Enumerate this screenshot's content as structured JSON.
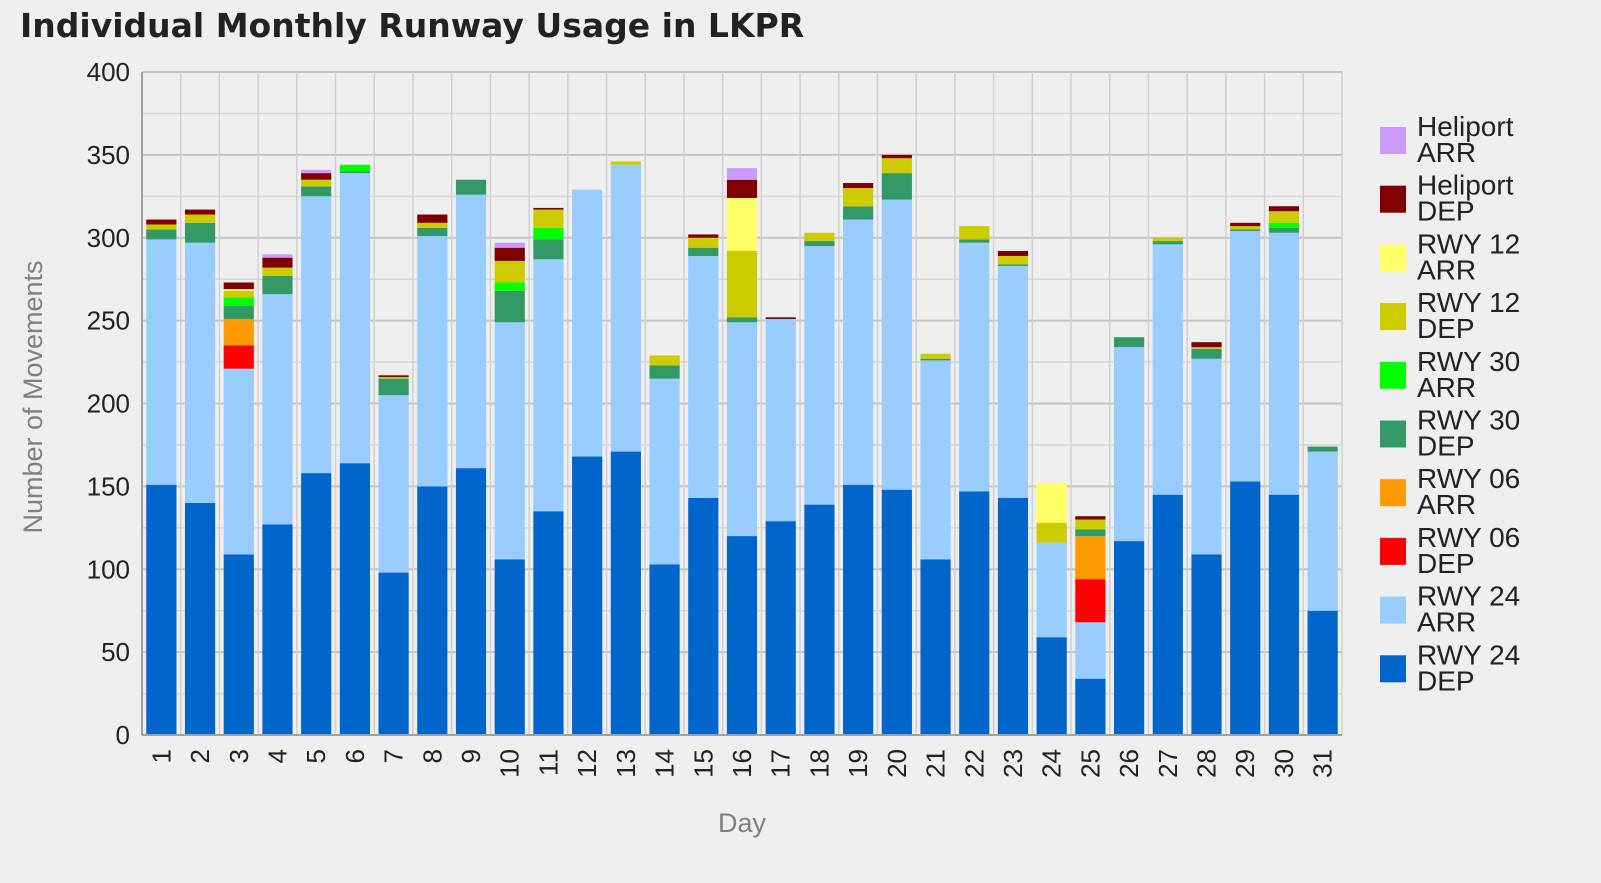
{
  "chart_data": {
    "type": "bar",
    "stacked": true,
    "title": "Individual Monthly Runway Usage in LKPR",
    "xlabel": "Day",
    "ylabel": "Number of Movements",
    "ylim": [
      0,
      400
    ],
    "yticks": [
      0,
      50,
      100,
      150,
      200,
      250,
      300,
      350,
      400
    ],
    "grid": true,
    "legend_position": "right",
    "categories": [
      "1",
      "2",
      "3",
      "4",
      "5",
      "6",
      "7",
      "8",
      "9",
      "10",
      "11",
      "12",
      "13",
      "14",
      "15",
      "16",
      "17",
      "18",
      "19",
      "20",
      "21",
      "22",
      "23",
      "24",
      "25",
      "26",
      "27",
      "28",
      "29",
      "30",
      "31"
    ],
    "series": [
      {
        "name": "RWY 24 DEP",
        "color": "#0066cc",
        "values": [
          151,
          140,
          109,
          127,
          158,
          164,
          98,
          150,
          161,
          106,
          135,
          168,
          171,
          103,
          143,
          120,
          129,
          139,
          151,
          148,
          106,
          147,
          143,
          59,
          34,
          117,
          145,
          109,
          153,
          145,
          75
        ]
      },
      {
        "name": "RWY 24 ARR",
        "color": "#99ccff",
        "values": [
          148,
          157,
          112,
          139,
          167,
          175,
          107,
          151,
          165,
          143,
          152,
          161,
          173,
          112,
          146,
          129,
          122,
          156,
          160,
          175,
          120,
          150,
          140,
          57,
          34,
          117,
          151,
          118,
          151,
          158,
          96
        ]
      },
      {
        "name": "RWY 06 DEP",
        "color": "#ff0000",
        "values": [
          0,
          0,
          14,
          0,
          0,
          0,
          0,
          0,
          0,
          0,
          0,
          0,
          0,
          0,
          0,
          0,
          0,
          0,
          0,
          0,
          0,
          0,
          0,
          0,
          26,
          0,
          0,
          0,
          0,
          0,
          0
        ]
      },
      {
        "name": "RWY 06 ARR",
        "color": "#ff9900",
        "values": [
          0,
          0,
          16,
          0,
          0,
          0,
          0,
          0,
          0,
          0,
          0,
          0,
          0,
          0,
          0,
          0,
          0,
          0,
          0,
          0,
          0,
          0,
          0,
          0,
          26,
          0,
          0,
          0,
          0,
          0,
          0
        ]
      },
      {
        "name": "RWY 30 DEP",
        "color": "#339966",
        "values": [
          6,
          12,
          8,
          11,
          6,
          1,
          10,
          5,
          9,
          19,
          12,
          0,
          0,
          8,
          5,
          3,
          0,
          3,
          8,
          16,
          1,
          2,
          1,
          0,
          4,
          6,
          2,
          6,
          1,
          3,
          3
        ]
      },
      {
        "name": "RWY 30 ARR",
        "color": "#00ff00",
        "values": [
          0,
          0,
          5,
          0,
          0,
          4,
          0,
          0,
          0,
          5,
          7,
          0,
          0,
          0,
          0,
          0,
          0,
          0,
          0,
          0,
          0,
          0,
          0,
          0,
          0,
          0,
          0,
          0,
          0,
          3,
          0
        ]
      },
      {
        "name": "RWY 12 DEP",
        "color": "#cccc00",
        "values": [
          3,
          5,
          4,
          5,
          4,
          0,
          1,
          3,
          0,
          13,
          11,
          0,
          2,
          6,
          6,
          40,
          0,
          5,
          11,
          9,
          3,
          8,
          5,
          12,
          6,
          0,
          2,
          1,
          2,
          7,
          0
        ]
      },
      {
        "name": "RWY 12 ARR",
        "color": "#ffff66",
        "values": [
          0,
          0,
          1,
          0,
          0,
          0,
          0,
          0,
          0,
          0,
          0,
          0,
          0,
          0,
          0,
          32,
          0,
          0,
          0,
          0,
          0,
          0,
          0,
          24,
          0,
          0,
          0,
          0,
          0,
          0,
          0
        ]
      },
      {
        "name": "Heliport DEP",
        "color": "#800000",
        "values": [
          3,
          3,
          4,
          6,
          4,
          0,
          1,
          5,
          0,
          8,
          1,
          0,
          0,
          0,
          2,
          11,
          1,
          0,
          3,
          2,
          0,
          0,
          3,
          0,
          2,
          0,
          0,
          3,
          2,
          3,
          0
        ]
      },
      {
        "name": "Heliport ARR",
        "color": "#cc99ff",
        "values": [
          0,
          0,
          0,
          2,
          2,
          0,
          0,
          0,
          0,
          3,
          0,
          0,
          0,
          0,
          0,
          7,
          0,
          0,
          0,
          0,
          0,
          0,
          0,
          0,
          0,
          0,
          0,
          0,
          0,
          0,
          0
        ]
      }
    ],
    "legend_order": [
      "Heliport ARR",
      "Heliport DEP",
      "RWY 12 ARR",
      "RWY 12 DEP",
      "RWY 30 ARR",
      "RWY 30 DEP",
      "RWY 06 ARR",
      "RWY 06 DEP",
      "RWY 24 ARR",
      "RWY 24 DEP"
    ]
  }
}
